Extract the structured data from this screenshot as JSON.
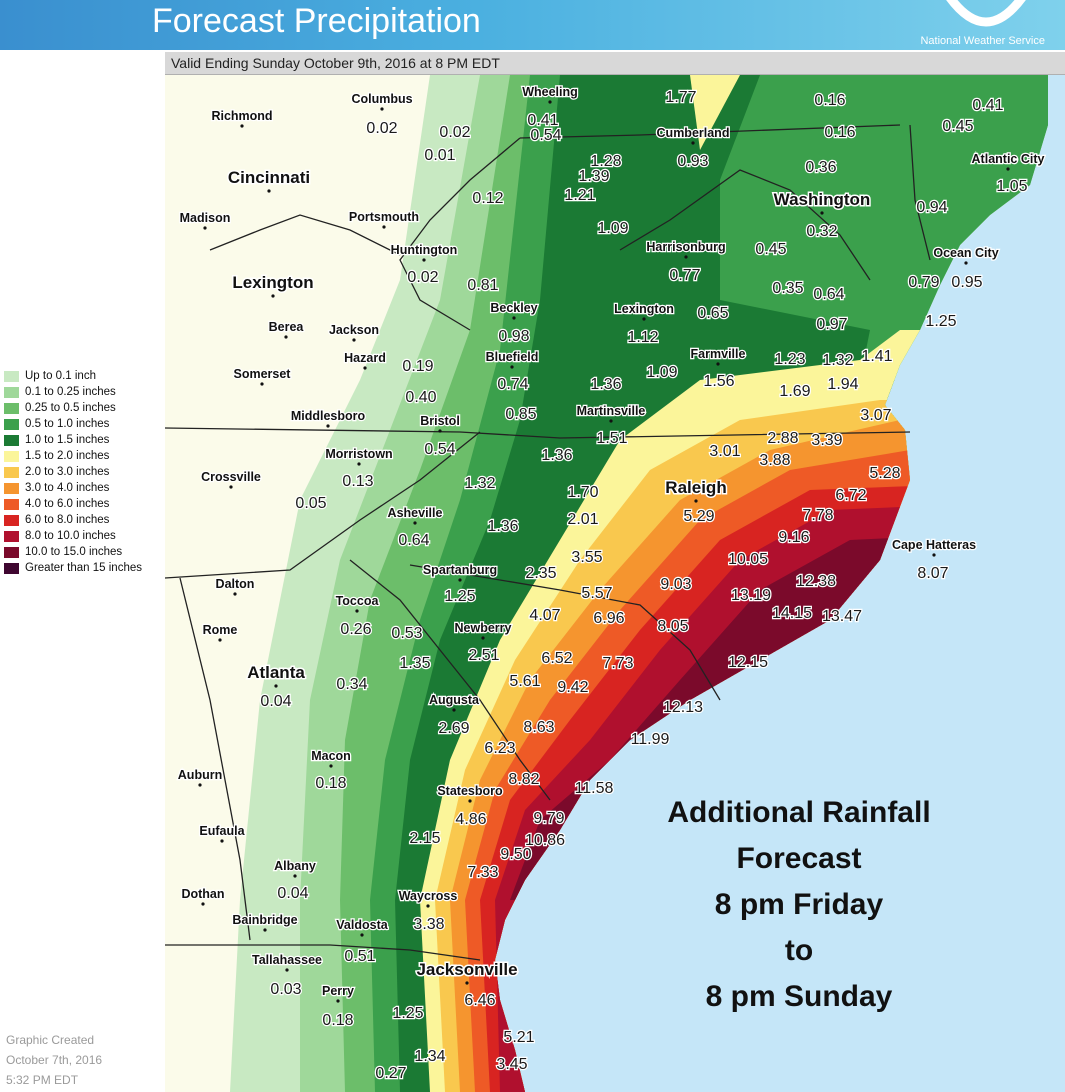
{
  "header": {
    "title": "Forecast Precipitation",
    "agency": "National Weather Service",
    "valid": "Valid Ending Sunday October 9th, 2016 at 8 PM EDT"
  },
  "legend": [
    {
      "label": "Up to 0.1 inch",
      "color": "#c8e9c2"
    },
    {
      "label": "0.1 to 0.25 inches",
      "color": "#9fd89a"
    },
    {
      "label": "0.25 to 0.5 inches",
      "color": "#6cbe6a"
    },
    {
      "label": "0.5 to 1.0 inches",
      "color": "#3ba04c"
    },
    {
      "label": "1.0 to 1.5 inches",
      "color": "#1b7a34"
    },
    {
      "label": "1.5 to 2.0 inches",
      "color": "#fbf59a"
    },
    {
      "label": "2.0 to 3.0 inches",
      "color": "#f9c84e"
    },
    {
      "label": "3.0 to 4.0 inches",
      "color": "#f5952f"
    },
    {
      "label": "4.0 to 6.0 inches",
      "color": "#ee5a26"
    },
    {
      "label": "6.0 to 8.0 inches",
      "color": "#d82421"
    },
    {
      "label": "8.0 to 10.0 inches",
      "color": "#b0102e"
    },
    {
      "label": "10.0 to 15.0 inches",
      "color": "#7b0a2b"
    },
    {
      "label": "Greater than 15 inches",
      "color": "#3f0630"
    }
  ],
  "annotation": [
    "Additional Rainfall",
    "Forecast",
    "8 pm Friday",
    "to",
    "8 pm Sunday"
  ],
  "credit": [
    "Graphic Created",
    "October 7th, 2016",
    "5:32 PM EDT"
  ],
  "cities": [
    {
      "name": "Columbus",
      "big": false
    },
    {
      "name": "Wheeling",
      "big": false
    },
    {
      "name": "Richmond",
      "big": false
    },
    {
      "name": "Cumberland",
      "big": false
    },
    {
      "name": "Atlantic City",
      "big": false
    },
    {
      "name": "Cincinnati",
      "big": true
    },
    {
      "name": "Washington",
      "big": true
    },
    {
      "name": "Madison",
      "big": false
    },
    {
      "name": "Portsmouth",
      "big": false
    },
    {
      "name": "Huntington",
      "big": false
    },
    {
      "name": "Harrisonburg",
      "big": false
    },
    {
      "name": "Ocean City",
      "big": false
    },
    {
      "name": "Lexington",
      "big": true
    },
    {
      "name": "Beckley",
      "big": false
    },
    {
      "name": "Lexington",
      "big": false
    },
    {
      "name": "Berea",
      "big": false
    },
    {
      "name": "Jackson",
      "big": false
    },
    {
      "name": "Hazard",
      "big": false
    },
    {
      "name": "Bluefield",
      "big": false
    },
    {
      "name": "Farmville",
      "big": false
    },
    {
      "name": "Somerset",
      "big": false
    },
    {
      "name": "Middlesboro",
      "big": false
    },
    {
      "name": "Bristol",
      "big": false
    },
    {
      "name": "Martinsville",
      "big": false
    },
    {
      "name": "Morristown",
      "big": false
    },
    {
      "name": "Crossville",
      "big": false
    },
    {
      "name": "Raleigh",
      "big": true
    },
    {
      "name": "Asheville",
      "big": false
    },
    {
      "name": "Cape Hatteras",
      "big": false
    },
    {
      "name": "Spartanburg",
      "big": false
    },
    {
      "name": "Dalton",
      "big": false
    },
    {
      "name": "Toccoa",
      "big": false
    },
    {
      "name": "Rome",
      "big": false
    },
    {
      "name": "Newberry",
      "big": false
    },
    {
      "name": "Atlanta",
      "big": true
    },
    {
      "name": "Augusta",
      "big": false
    },
    {
      "name": "Macon",
      "big": false
    },
    {
      "name": "Auburn",
      "big": false
    },
    {
      "name": "Statesboro",
      "big": false
    },
    {
      "name": "Eufaula",
      "big": false
    },
    {
      "name": "Albany",
      "big": false
    },
    {
      "name": "Dothan",
      "big": false
    },
    {
      "name": "Waycross",
      "big": false
    },
    {
      "name": "Bainbridge",
      "big": false
    },
    {
      "name": "Valdosta",
      "big": false
    },
    {
      "name": "Tallahassee",
      "big": false
    },
    {
      "name": "Jacksonville",
      "big": true
    },
    {
      "name": "Perry",
      "big": false
    }
  ],
  "values": [
    "1.77",
    "0.16",
    "0.41",
    "0.41",
    "0.45",
    "0.02",
    "0.02",
    "0.54",
    "0.16",
    "0.01",
    "1.28",
    "0.93",
    "0.36",
    "1.39",
    "1.05",
    "1.21",
    "0.12",
    "0.94",
    "1.09",
    "0.32",
    "0.45",
    "0.77",
    "0.02",
    "0.81",
    "0.95",
    "0.79",
    "0.35",
    "0.64",
    "0.65",
    "1.25",
    "0.98",
    "0.97",
    "1.12",
    "1.23",
    "1.32",
    "1.41",
    "0.19",
    "1.09",
    "0.74",
    "1.56",
    "1.69",
    "1.94",
    "1.36",
    "0.40",
    "0.85",
    "3.07",
    "1.51",
    "0.54",
    "2.88",
    "3.39",
    "3.01",
    "1.36",
    "3.88",
    "0.13",
    "1.32",
    "5.28",
    "1.70",
    "6.72",
    "0.05",
    "2.01",
    "5.29",
    "7.78",
    "1.36",
    "9.16",
    "0.64",
    "10.05",
    "3.55",
    "8.07",
    "2.35",
    "12.38",
    "5.57",
    "9.03",
    "13.19",
    "1.25",
    "14.15",
    "13.47",
    "0.26",
    "0.53",
    "4.07",
    "6.96",
    "8.05",
    "2.51",
    "6.52",
    "12.15",
    "7.73",
    "1.35",
    "5.61",
    "9.42",
    "0.34",
    "0.04",
    "2.69",
    "8.63",
    "12.13",
    "6.23",
    "11.99",
    "0.18",
    "8.82",
    "11.58",
    "4.86",
    "9.79",
    "10.86",
    "2.15",
    "9.50",
    "7.33",
    "0.04",
    "3.38",
    "0.51",
    "0.03",
    "6.46",
    "0.18",
    "1.25",
    "5.21",
    "1.34",
    "3.45",
    "0.27"
  ]
}
